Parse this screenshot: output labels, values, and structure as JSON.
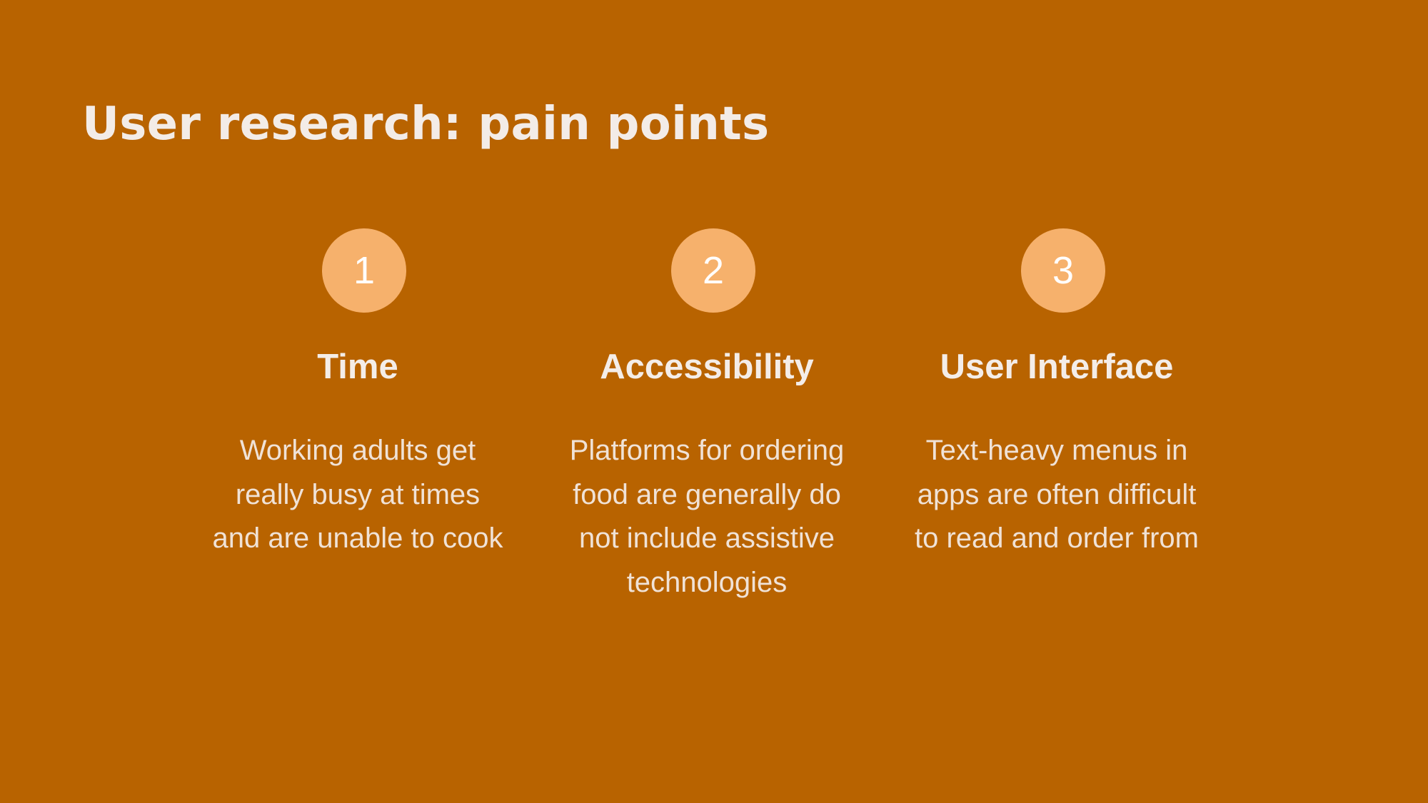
{
  "slide": {
    "title": "User research: pain points",
    "colors": {
      "background": "#b86300",
      "badge": "#f6b16c",
      "text": "#f3ece7"
    },
    "points": [
      {
        "number": "1",
        "heading": "Time",
        "body": "Working adults get really busy at times and are unable to cook"
      },
      {
        "number": "2",
        "heading": "Accessibility",
        "body": "Platforms for ordering food are generally do not include assistive technologies"
      },
      {
        "number": "3",
        "heading": "User Interface",
        "body": "Text-heavy menus in apps are often difficult to read and order from"
      }
    ]
  }
}
